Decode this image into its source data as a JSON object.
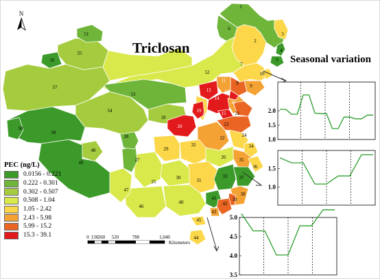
{
  "title": "Triclosan",
  "seasonal_title": "Seasonal variation",
  "north_label": "N",
  "legend": {
    "title": "PEC (ng/L)",
    "items": [
      {
        "label": "0.0156 - 0.221",
        "color": "#3c9a2a"
      },
      {
        "label": "0.222 - 0.301",
        "color": "#6fb53a"
      },
      {
        "label": "0.302 - 0.507",
        "color": "#a5cc3e"
      },
      {
        "label": "0.508 - 1.04",
        "color": "#d9e84a"
      },
      {
        "label": "1.05 - 2.42",
        "color": "#fbd749"
      },
      {
        "label": "2.43 - 5.98",
        "color": "#f4a234"
      },
      {
        "label": "5.99 - 15.2",
        "color": "#ea6523"
      },
      {
        "label": "15.3 - 39.1",
        "color": "#e31a1c"
      }
    ]
  },
  "scale_bar": {
    "ticks": [
      "0",
      "130",
      "260",
      "520",
      "780",
      "1,040"
    ],
    "unit": "Kilometers"
  },
  "region_labels": [
    "1",
    "2",
    "3",
    "4",
    "5",
    "6",
    "7",
    "8",
    "9",
    "10",
    "11",
    "12",
    "13",
    "14",
    "15",
    "16",
    "17",
    "18",
    "19",
    "20",
    "21",
    "22",
    "23",
    "24",
    "25",
    "26",
    "27",
    "28",
    "29",
    "30",
    "31",
    "32",
    "33",
    "34",
    "35",
    "36",
    "37",
    "38",
    "39",
    "40",
    "41",
    "42",
    "43",
    "44",
    "45",
    "46",
    "47",
    "48",
    "49",
    "50",
    "51",
    "52",
    "53",
    "54",
    "55",
    "56",
    "57",
    "58"
  ],
  "chart_data": [
    {
      "type": "line",
      "y_ticks": [
        "2.0",
        "1.5",
        "1.0"
      ],
      "ylim": [
        1.0,
        3.0
      ],
      "series_color": "#2a9d2a",
      "values": [
        2.05,
        2.05,
        1.88,
        1.88,
        2.55,
        2.55,
        1.92,
        1.9,
        1.9,
        1.38,
        1.38,
        1.78,
        1.78,
        1.72,
        1.72,
        1.85,
        1.85
      ]
    },
    {
      "type": "line",
      "y_ticks": [
        "1.5",
        "1.0"
      ],
      "ylim": [
        0.5,
        2.0
      ],
      "series_color": "#2a9d2a",
      "values": [
        1.8,
        1.66,
        1.66,
        1.08,
        1.08,
        1.3,
        1.3,
        1.88,
        1.88
      ]
    },
    {
      "type": "line",
      "y_ticks": [
        "5.0",
        "4.5",
        "4.0",
        "3.5"
      ],
      "ylim": [
        3.5,
        5.0
      ],
      "series_color": "#2a9d2a",
      "values": [
        5.1,
        4.65,
        4.65,
        4.02,
        4.02,
        4.78,
        4.78,
        5.2,
        5.2
      ]
    }
  ]
}
